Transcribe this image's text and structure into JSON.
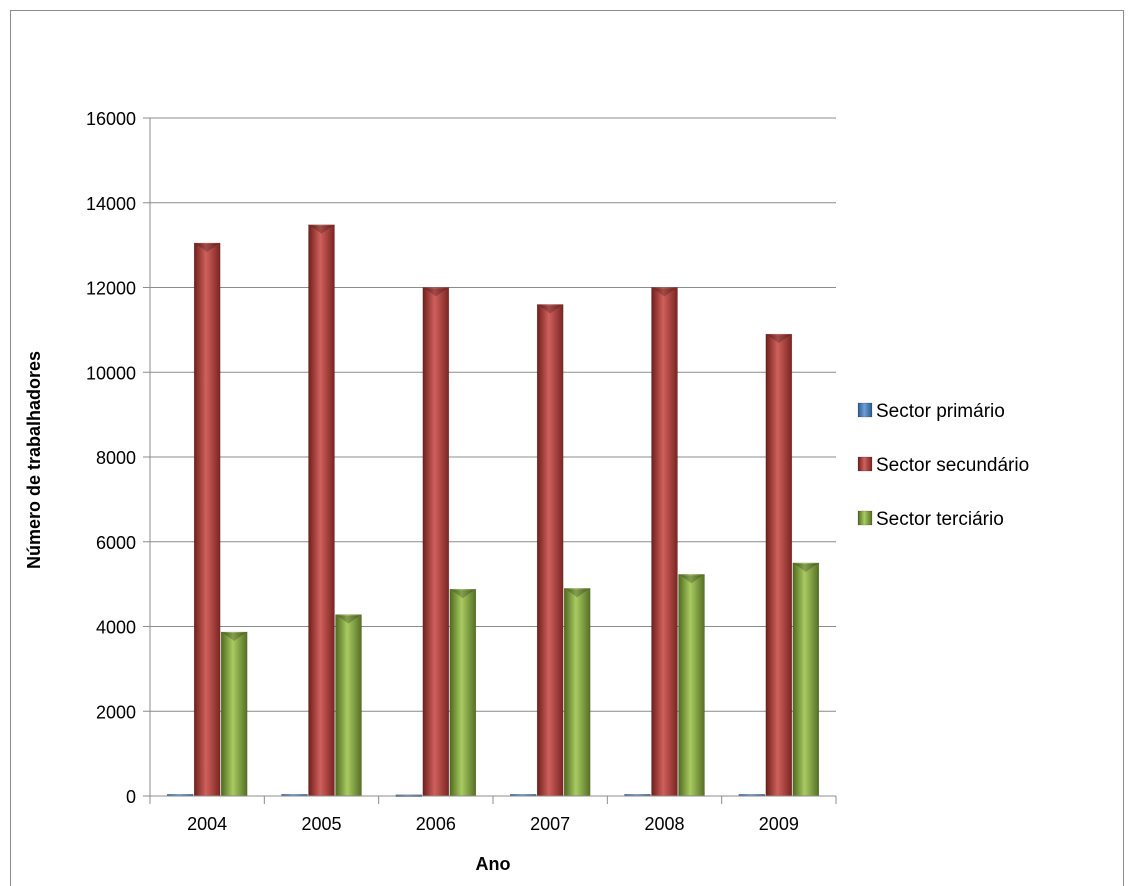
{
  "chart_data": {
    "type": "bar",
    "categories": [
      "2004",
      "2005",
      "2006",
      "2007",
      "2008",
      "2009"
    ],
    "series": [
      {
        "name": "Sector primário",
        "color": "#4f81bd",
        "values": [
          40,
          40,
          30,
          40,
          40,
          40
        ]
      },
      {
        "name": "Sector secundário",
        "color": "#c0504d",
        "values": [
          13050,
          13480,
          12000,
          11600,
          12000,
          10900
        ]
      },
      {
        "name": "Sector terciário",
        "color": "#9bbb59",
        "values": [
          3870,
          4280,
          4880,
          4900,
          5230,
          5500
        ]
      }
    ],
    "xlabel": "Ano",
    "ylabel": "Número de trabalhadores",
    "ylim": [
      0,
      16000
    ],
    "yticks": [
      "0",
      "2000",
      "4000",
      "6000",
      "8000",
      "10000",
      "12000",
      "14000",
      "16000"
    ],
    "grid": true,
    "legend_position": "right"
  }
}
